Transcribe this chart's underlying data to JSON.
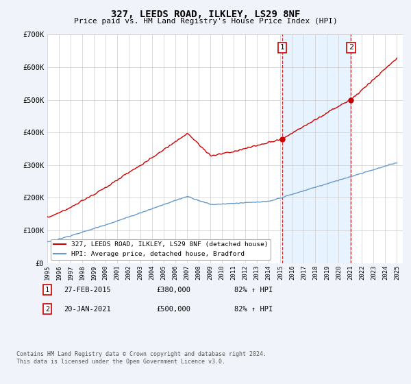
{
  "title": "327, LEEDS ROAD, ILKLEY, LS29 8NF",
  "subtitle": "Price paid vs. HM Land Registry's House Price Index (HPI)",
  "ylim": [
    0,
    700000
  ],
  "yticks": [
    0,
    100000,
    200000,
    300000,
    400000,
    500000,
    600000,
    700000
  ],
  "ytick_labels": [
    "£0",
    "£100K",
    "£200K",
    "£300K",
    "£400K",
    "£500K",
    "£600K",
    "£700K"
  ],
  "xlim_start": 1995.0,
  "xlim_end": 2025.5,
  "xticks": [
    1995,
    1996,
    1997,
    1998,
    1999,
    2000,
    2001,
    2002,
    2003,
    2004,
    2005,
    2006,
    2007,
    2008,
    2009,
    2010,
    2011,
    2012,
    2013,
    2014,
    2015,
    2016,
    2017,
    2018,
    2019,
    2020,
    2021,
    2022,
    2023,
    2024,
    2025
  ],
  "vline1_x": 2015.15,
  "vline2_x": 2021.05,
  "sale1_price_y": 380000,
  "sale2_price_y": 500000,
  "sale1_date": "27-FEB-2015",
  "sale1_price": "£380,000",
  "sale1_hpi": "82% ↑ HPI",
  "sale2_date": "20-JAN-2021",
  "sale2_price": "£500,000",
  "sale2_hpi": "82% ↑ HPI",
  "legend_label1": "327, LEEDS ROAD, ILKLEY, LS29 8NF (detached house)",
  "legend_label2": "HPI: Average price, detached house, Bradford",
  "line1_color": "#cc0000",
  "line2_color": "#6699cc",
  "shade_color": "#ddeeff",
  "copyright_text": "Contains HM Land Registry data © Crown copyright and database right 2024.\nThis data is licensed under the Open Government Licence v3.0.",
  "background_color": "#f0f4fa",
  "plot_bg_color": "#ffffff"
}
